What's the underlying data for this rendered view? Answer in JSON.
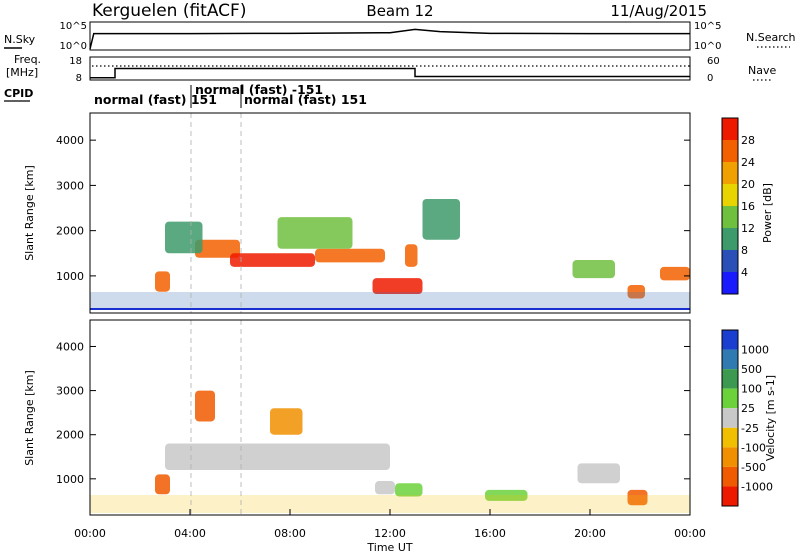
{
  "header": {
    "station": "Kerguelen (fitACF)",
    "beam": "Beam 12",
    "date": "11/Aug/2015"
  },
  "noise_panel": {
    "left_label": "N.Sky",
    "right_label": "N.Search",
    "left_ticks": [
      "10^5",
      "10^0"
    ],
    "right_ticks": [
      "10^5",
      "10^0"
    ]
  },
  "freq_panel": {
    "left_label_1": "Freq.",
    "left_label_2": "[MHz]",
    "right_label": "Nave",
    "left_ticks": [
      "18",
      "8"
    ],
    "right_ticks": [
      "60",
      "0"
    ]
  },
  "cpid": {
    "label": "CPID",
    "segments": [
      {
        "text": "normal (fast) 151",
        "row": 1
      },
      {
        "text": "normal (fast) -151",
        "row": 0
      },
      {
        "text": "normal (fast) 151",
        "row": 1
      }
    ]
  },
  "axes": {
    "ylabel": "Slant Range [km]",
    "xlabel": "Time UT",
    "y_ticks": [
      "1000",
      "2000",
      "3000",
      "4000"
    ],
    "x_ticks": [
      "00:00",
      "04:00",
      "08:00",
      "12:00",
      "16:00",
      "20:00",
      "00:00"
    ]
  },
  "colorbars": {
    "power": {
      "label": "Power [dB]",
      "ticks": [
        "4",
        "8",
        "12",
        "16",
        "20",
        "24",
        "28"
      ],
      "colors": [
        "#1a1aff",
        "#2a50b8",
        "#3d9a6a",
        "#70c040",
        "#e8d400",
        "#f0a000",
        "#f26000",
        "#ee1a00"
      ]
    },
    "velocity": {
      "label": "Velocity [m s-1]",
      "ticks": [
        "1000",
        "500",
        "100",
        "25",
        "-25",
        "-100",
        "-500",
        "-1000"
      ],
      "colors": [
        "#1a3fd0",
        "#2f7ab0",
        "#3c9a50",
        "#6cd23c",
        "#c8c8c8",
        "#f0c000",
        "#f09000",
        "#f05a00",
        "#ee1a00"
      ]
    }
  },
  "chart_data": [
    {
      "type": "line",
      "title": "Kerguelen (fitACF) Beam 12 11/Aug/2015",
      "ylabel": "N.Sky",
      "xlim": [
        "00:00",
        "24:00"
      ],
      "series": [
        {
          "name": "N.Sky",
          "x": [
            0.0,
            0.15,
            1,
            4,
            8,
            12,
            13,
            14,
            16,
            20,
            24
          ],
          "values": [
            0.0,
            0.55,
            0.55,
            0.55,
            0.56,
            0.58,
            0.7,
            0.62,
            0.56,
            0.55,
            0.55
          ]
        },
        {
          "name": "N.Search",
          "x": [
            0,
            24
          ],
          "values": [
            0.5,
            0.5
          ]
        }
      ]
    },
    {
      "type": "line",
      "ylabel": "Freq. [MHz]",
      "xlim": [
        "00:00",
        "24:00"
      ],
      "series": [
        {
          "name": "Freq.",
          "x": [
            0.0,
            1.0,
            1.0,
            13.0,
            13.0,
            24.0
          ],
          "values": [
            9.0,
            9.0,
            13.0,
            13.0,
            9.5,
            9.5
          ]
        },
        {
          "name": "Nave",
          "x": [
            0,
            24
          ],
          "values": [
            40,
            40
          ]
        }
      ]
    },
    {
      "type": "heatmap",
      "ylabel": "Slant Range [km]",
      "xlabel": "Time UT",
      "colorbar": "Power [dB]",
      "ylim": [
        180,
        4600
      ],
      "blobs": [
        {
          "t0": 2.6,
          "t1": 3.2,
          "r0": 650,
          "r1": 1100,
          "level": 6
        },
        {
          "t0": 4.2,
          "t1": 6.0,
          "r0": 1400,
          "r1": 1800,
          "level": 6
        },
        {
          "t0": 5.6,
          "t1": 9.0,
          "r0": 1200,
          "r1": 1500,
          "level": 7
        },
        {
          "t0": 9.0,
          "t1": 11.8,
          "r0": 1300,
          "r1": 1600,
          "level": 6
        },
        {
          "t0": 11.3,
          "t1": 13.3,
          "r0": 600,
          "r1": 950,
          "level": 7
        },
        {
          "t0": 12.6,
          "t1": 13.1,
          "r0": 1200,
          "r1": 1700,
          "level": 6
        },
        {
          "t0": 3.0,
          "t1": 4.5,
          "r0": 1500,
          "r1": 2200,
          "level": 2
        },
        {
          "t0": 7.5,
          "t1": 10.5,
          "r0": 1600,
          "r1": 2300,
          "level": 3
        },
        {
          "t0": 13.3,
          "t1": 14.8,
          "r0": 1800,
          "r1": 2700,
          "level": 2
        },
        {
          "t0": 19.3,
          "t1": 21.0,
          "r0": 950,
          "r1": 1350,
          "level": 3
        },
        {
          "t0": 22.8,
          "t1": 24.0,
          "r0": 900,
          "r1": 1200,
          "level": 6
        },
        {
          "t0": 21.5,
          "t1": 22.2,
          "r0": 500,
          "r1": 800,
          "level": 6
        }
      ]
    },
    {
      "type": "heatmap",
      "ylabel": "Slant Range [km]",
      "xlabel": "Time UT",
      "colorbar": "Velocity [m s-1]",
      "ylim": [
        180,
        4600
      ],
      "blobs": [
        {
          "t0": 2.6,
          "t1": 3.2,
          "r0": 650,
          "r1": 1100,
          "level": 7
        },
        {
          "t0": 3.0,
          "t1": 12.0,
          "r0": 1200,
          "r1": 1800,
          "level": 4
        },
        {
          "t0": 11.4,
          "t1": 12.2,
          "r0": 650,
          "r1": 950,
          "level": 4
        },
        {
          "t0": 12.2,
          "t1": 13.3,
          "r0": 600,
          "r1": 900,
          "level": 3
        },
        {
          "t0": 15.8,
          "t1": 17.5,
          "r0": 500,
          "r1": 750,
          "level": 3
        },
        {
          "t0": 19.5,
          "t1": 21.2,
          "r0": 900,
          "r1": 1350,
          "level": 4
        },
        {
          "t0": 21.5,
          "t1": 22.3,
          "r0": 400,
          "r1": 750,
          "level": 7
        },
        {
          "t0": 4.2,
          "t1": 5.0,
          "r0": 2300,
          "r1": 3000,
          "level": 7
        },
        {
          "t0": 7.2,
          "t1": 8.5,
          "r0": 2000,
          "r1": 2600,
          "level": 6
        }
      ]
    }
  ]
}
